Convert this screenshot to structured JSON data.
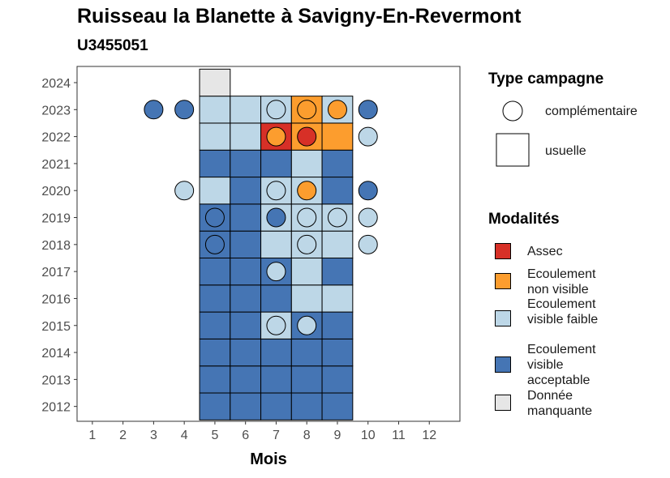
{
  "title": "Ruisseau la Blanette à Savigny-En-Revermont",
  "subtitle": "U3455051",
  "chart_data": {
    "type": "heatmap",
    "xlabel": "Mois",
    "ylabel": "",
    "x_ticks": [
      1,
      2,
      3,
      4,
      5,
      6,
      7,
      8,
      9,
      10,
      11,
      12
    ],
    "y_ticks": [
      2012,
      2013,
      2014,
      2015,
      2016,
      2017,
      2018,
      2019,
      2020,
      2021,
      2022,
      2023,
      2024
    ],
    "xlim": [
      0.5,
      13
    ],
    "ylim": [
      2011.45,
      2024.6
    ],
    "grid": false,
    "legend_placement": "right",
    "categories": {
      "assec": {
        "label": "Assec",
        "color": "#D73027"
      },
      "nonvis": {
        "label": "Ecoulement non visible",
        "color": "#FC9D2E"
      },
      "faible": {
        "label": "Ecoulement visible faible",
        "color": "#BDD7E7"
      },
      "accept": {
        "label": "Ecoulement visible acceptable",
        "color": "#4575B4"
      },
      "manq": {
        "label": "Donnée manquante",
        "color": "#E6E6E6"
      }
    },
    "usuelle": [
      {
        "year": 2012,
        "months": [
          "accept",
          "accept",
          "accept",
          "accept",
          "accept"
        ]
      },
      {
        "year": 2013,
        "months": [
          "accept",
          "accept",
          "accept",
          "accept",
          "accept"
        ]
      },
      {
        "year": 2014,
        "months": [
          "accept",
          "accept",
          "accept",
          "accept",
          "accept"
        ]
      },
      {
        "year": 2015,
        "months": [
          "accept",
          "accept",
          "faible",
          "accept",
          "accept"
        ]
      },
      {
        "year": 2016,
        "months": [
          "accept",
          "accept",
          "accept",
          "faible",
          "faible"
        ]
      },
      {
        "year": 2017,
        "months": [
          "accept",
          "accept",
          "accept",
          "faible",
          "accept"
        ]
      },
      {
        "year": 2018,
        "months": [
          "accept",
          "accept",
          "faible",
          "faible",
          "faible"
        ]
      },
      {
        "year": 2019,
        "months": [
          "accept",
          "accept",
          "faible",
          "faible",
          "faible"
        ]
      },
      {
        "year": 2020,
        "months": [
          "faible",
          "accept",
          "faible",
          "faible",
          "accept"
        ]
      },
      {
        "year": 2021,
        "months": [
          "accept",
          "accept",
          "accept",
          "faible",
          "accept"
        ]
      },
      {
        "year": 2022,
        "months": [
          "faible",
          "faible",
          "assec",
          "nonvis",
          "nonvis"
        ]
      },
      {
        "year": 2023,
        "months": [
          "faible",
          "faible",
          "faible",
          "nonvis",
          "faible"
        ]
      }
    ],
    "usuelle_first_month": 5,
    "usuelle_extra": [
      {
        "year": 2024,
        "month": 5,
        "value": "manq"
      }
    ],
    "complementaire": [
      {
        "year": 2015,
        "month": 7,
        "value": "faible"
      },
      {
        "year": 2015,
        "month": 8,
        "value": "faible"
      },
      {
        "year": 2017,
        "month": 7,
        "value": "faible"
      },
      {
        "year": 2018,
        "month": 5,
        "value": "accept"
      },
      {
        "year": 2018,
        "month": 8,
        "value": "faible"
      },
      {
        "year": 2018,
        "month": 10,
        "value": "faible"
      },
      {
        "year": 2019,
        "month": 5,
        "value": "accept"
      },
      {
        "year": 2019,
        "month": 7,
        "value": "accept"
      },
      {
        "year": 2019,
        "month": 8,
        "value": "faible"
      },
      {
        "year": 2019,
        "month": 9,
        "value": "faible"
      },
      {
        "year": 2019,
        "month": 10,
        "value": "faible"
      },
      {
        "year": 2020,
        "month": 4,
        "value": "faible"
      },
      {
        "year": 2020,
        "month": 7,
        "value": "faible"
      },
      {
        "year": 2020,
        "month": 8,
        "value": "nonvis"
      },
      {
        "year": 2020,
        "month": 10,
        "value": "accept"
      },
      {
        "year": 2022,
        "month": 7,
        "value": "nonvis"
      },
      {
        "year": 2022,
        "month": 8,
        "value": "assec"
      },
      {
        "year": 2022,
        "month": 10,
        "value": "faible"
      },
      {
        "year": 2023,
        "month": 3,
        "value": "accept"
      },
      {
        "year": 2023,
        "month": 4,
        "value": "accept"
      },
      {
        "year": 2023,
        "month": 7,
        "value": "faible"
      },
      {
        "year": 2023,
        "month": 8,
        "value": "nonvis"
      },
      {
        "year": 2023,
        "month": 9,
        "value": "nonvis"
      },
      {
        "year": 2023,
        "month": 10,
        "value": "accept"
      }
    ]
  },
  "legend": {
    "type_title": "Type campagne",
    "type_items": [
      {
        "shape": "circle",
        "label": "complémentaire"
      },
      {
        "shape": "square",
        "label": "usuelle"
      }
    ],
    "mod_title": "Modalités",
    "mod_items": [
      {
        "label": "Assec",
        "color": "#D73027"
      },
      {
        "label": "Ecoulement non visible",
        "color": "#FC9D2E"
      },
      {
        "label": "Ecoulement visible faible",
        "color": "#BDD7E7"
      },
      {
        "label": "Ecoulement visible acceptable",
        "color": "#4575B4"
      },
      {
        "label": "Donnée manquante",
        "color": "#E6E6E6"
      }
    ]
  }
}
